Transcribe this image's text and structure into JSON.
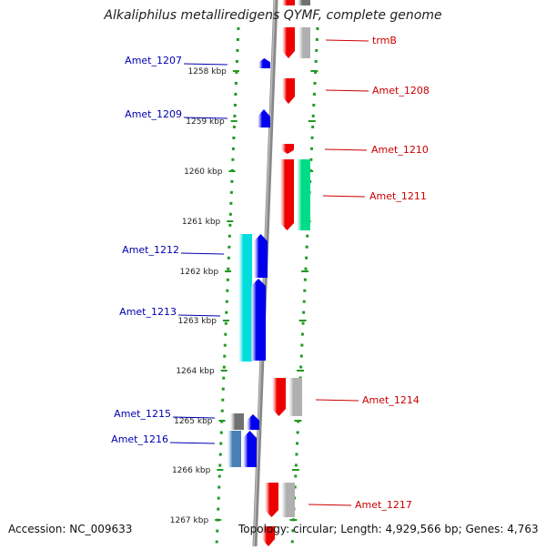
{
  "title": "Alkaliphilus metalliredigens QYMF, complete genome",
  "footer": {
    "accession": "Accession: NC_009633",
    "topology": "Topology: circular; Length: 4,929,566 bp; Genes: 4,763"
  },
  "scale_ticks": [
    {
      "label": "1258 kbp"
    },
    {
      "label": "1259 kbp"
    },
    {
      "label": "1260 kbp"
    },
    {
      "label": "1261 kbp"
    },
    {
      "label": "1262 kbp"
    },
    {
      "label": "1263 kbp"
    },
    {
      "label": "1264 kbp"
    },
    {
      "label": "1265 kbp"
    },
    {
      "label": "1266 kbp"
    },
    {
      "label": "1267 kbp"
    }
  ],
  "genes_left": [
    {
      "label": "Amet_1207",
      "color": "#0000b0"
    },
    {
      "label": "Amet_1209",
      "color": "#0000b0"
    },
    {
      "label": "Amet_1212",
      "color": "#0000b0"
    },
    {
      "label": "Amet_1213",
      "color": "#0000b0"
    },
    {
      "label": "Amet_1215",
      "color": "#0000b0"
    },
    {
      "label": "Amet_1216",
      "color": "#0000b0"
    }
  ],
  "genes_right": [
    {
      "label": "trmB",
      "color": "#cc0000"
    },
    {
      "label": "Amet_1208",
      "color": "#cc0000"
    },
    {
      "label": "Amet_1210",
      "color": "#cc0000"
    },
    {
      "label": "Amet_1211",
      "color": "#cc0000"
    },
    {
      "label": "Amet_1214",
      "color": "#cc0000"
    },
    {
      "label": "Amet_1217",
      "color": "#cc0000"
    }
  ],
  "colors": {
    "forward_strand": "#0000ee",
    "reverse_strand": "#ee0000",
    "cyan_feature": "#00dddd",
    "green_feature": "#00dd88",
    "gray_feature": "#b0b0b0",
    "steel_feature": "#4a7fb5",
    "dark_gray_feature": "#707070",
    "backbone": "#888888",
    "dotted_guides": "#229922"
  }
}
